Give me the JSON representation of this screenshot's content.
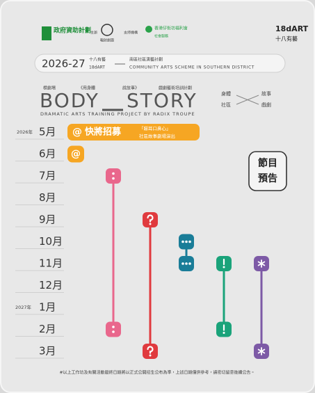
{
  "sponsors": {
    "funding": "政府資助計劃",
    "organizer_label": "主辦",
    "organizer": "輻射劇團",
    "supporter_label": "支持機構",
    "supporter": "香港仔街坊福利會",
    "supporter_sub": "社會服務",
    "brand": "18dART",
    "brand_zh": "十八有藝"
  },
  "banner": {
    "years": "2026-27",
    "brand_zh": "十八有藝",
    "brand": "18dART",
    "scheme": "南區社區演藝計劃",
    "scheme_en": "COMMUNITY ARTS SCHEME IN SOUTHERN DISTRICT"
  },
  "title": {
    "kicker": "標劇場",
    "quote_open": "《用身體",
    "quote_close": "說故事》",
    "programme": "戲劇藝術培訓計劃",
    "word1": "BODY",
    "word2": "STORY",
    "subtitle": "DRAMATIC ARTS TRAINING PROJECT BY RADIX TROUPE"
  },
  "concepts": [
    "身體",
    "故事",
    "社區",
    "戲劇"
  ],
  "timeline": {
    "years": [
      "2026年",
      "2027年"
    ],
    "months": [
      "5月",
      "6月",
      "7月",
      "8月",
      "9月",
      "10月",
      "11月",
      "12月",
      "1月",
      "2月",
      "3月"
    ]
  },
  "highlight": {
    "icon": "@",
    "label": "快將招募",
    "show": "「睇耳口鼻心」",
    "sub": "社區故事劇場演出"
  },
  "preview": [
    "節目",
    "預告"
  ],
  "footnote": "#以上工作坊及有關活動最終日期將以正式公開招生公布為準，上述日期僅供參考，請密切留意後續公告。"
}
